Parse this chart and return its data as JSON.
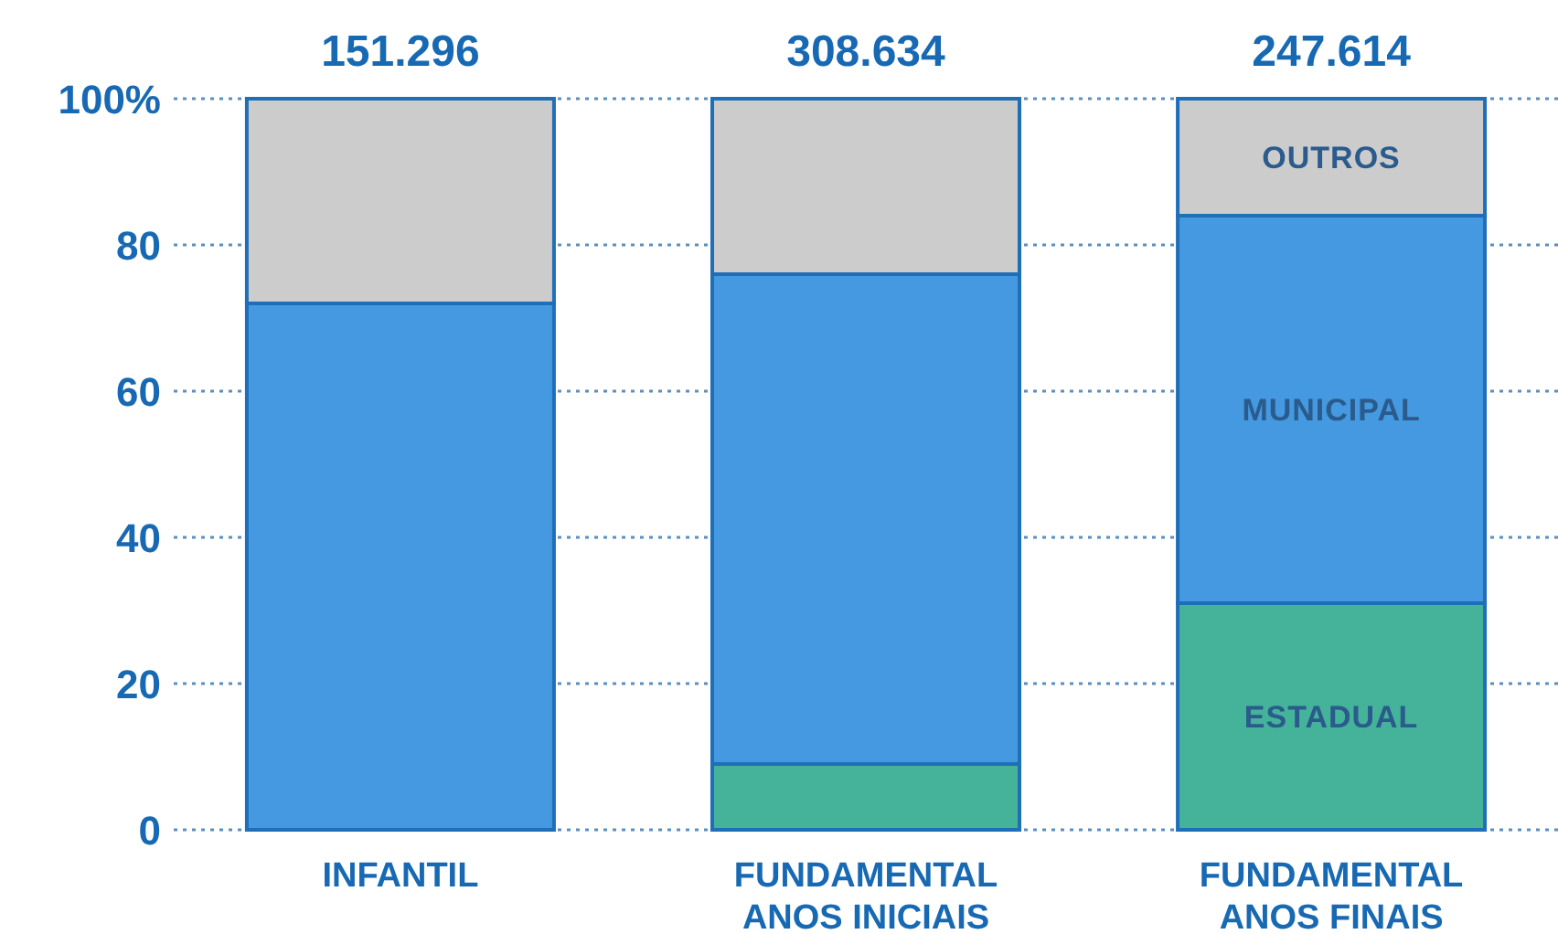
{
  "chart_data": {
    "type": "bar",
    "stacked": true,
    "categories": [
      "INFANTIL",
      "FUNDAMENTAL\nANOS INICIAIS",
      "FUNDAMENTAL\nANOS FINAIS"
    ],
    "series": [
      {
        "name": "ESTADUAL",
        "color": "#45b39a",
        "values": [
          0,
          9,
          31
        ]
      },
      {
        "name": "MUNICIPAL",
        "color": "#4499e0",
        "values": [
          72,
          67,
          53
        ]
      },
      {
        "name": "OUTROS",
        "color": "#cccccc",
        "values": [
          28,
          24,
          16
        ]
      }
    ],
    "ylim": [
      0,
      100
    ],
    "yticks": [
      0,
      20,
      40,
      60,
      80,
      {
        "value": 100,
        "label": "100%"
      }
    ],
    "grid": "y",
    "annotations": [
      {
        "text": "151.296",
        "x": "INFANTIL",
        "y": 100
      },
      {
        "text": "308.634",
        "x": "FUNDAMENTAL\nANOS INICIAIS",
        "y": 100
      },
      {
        "text": "247.614",
        "x": "FUNDAMENTAL\nANOS FINAIS",
        "y": 100
      }
    ]
  }
}
